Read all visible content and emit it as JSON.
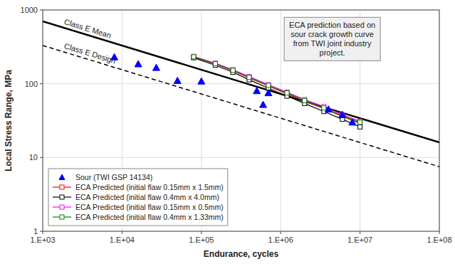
{
  "chart_data": {
    "type": "line",
    "xlabel": "Endurance, cycles",
    "ylabel": "Local Stress Range, MPa",
    "log": true,
    "grid": true,
    "legend": "lower left",
    "xlim": [
      1000,
      100000000
    ],
    "xticks": [
      {
        "value": 1000,
        "label": "1.E+03"
      },
      {
        "value": 10000,
        "label": "1.E+04"
      },
      {
        "value": 100000,
        "label": "1.E+05"
      },
      {
        "value": 1000000,
        "label": "1.E+06"
      },
      {
        "value": 10000000,
        "label": "1.E+07"
      },
      {
        "value": 100000000,
        "label": "1.E+08"
      }
    ],
    "ylim": [
      1,
      1000
    ],
    "yticks": [
      1,
      10,
      100,
      1000
    ],
    "reference_lines": [
      {
        "label": "Class E Mean",
        "x": [
          1000,
          100000000
        ],
        "values": [
          700,
          16
        ],
        "color": "black",
        "line_style": "solid"
      },
      {
        "label": "Class E Design",
        "x": [
          1000,
          100000000
        ],
        "values": [
          330,
          7.5
        ],
        "color": "black",
        "line_style": "dashed"
      }
    ],
    "series": [
      {
        "name": "Sour (TWI GSP 14134)",
        "type": "scatter",
        "color": "blue",
        "marker": "triangle",
        "x": [
          8000,
          16000,
          27000,
          50000,
          100000,
          500000,
          700000,
          600000,
          4000000,
          6000000,
          8000000
        ],
        "values": [
          230,
          185,
          165,
          110,
          108,
          80,
          75,
          52,
          45,
          38,
          30
        ]
      },
      {
        "name": "ECA Predicted (initial flaw 0.15mm x 1.5mm)",
        "type": "line",
        "color": "red",
        "marker": "square",
        "x": [
          80000,
          150000,
          250000,
          400000,
          700000,
          1200000,
          2000000,
          3500000,
          6000000,
          10000000
        ],
        "values": [
          230,
          185,
          150,
          120,
          93,
          73,
          58,
          46,
          36,
          29
        ]
      },
      {
        "name": "ECA Predicted (initial flaw 0.4mm x 4.0mm)",
        "type": "line",
        "color": "black",
        "marker": "square",
        "x": [
          80000,
          150000,
          250000,
          400000,
          700000,
          1200000,
          2000000,
          3500000,
          6000000,
          10000000
        ],
        "values": [
          225,
          178,
          143,
          113,
          87,
          68,
          54,
          42,
          33,
          26
        ]
      },
      {
        "name": "ECA Predicted (initial flaw 0.15mm x 0.5mm)",
        "type": "line",
        "color": "magenta",
        "marker": "square",
        "x": [
          80000,
          150000,
          250000,
          400000,
          700000,
          1200000,
          2000000,
          3500000,
          6000000,
          10000000
        ],
        "values": [
          235,
          190,
          155,
          125,
          97,
          77,
          61,
          49,
          38,
          31
        ]
      },
      {
        "name": "ECA Predicted (initial flaw 0.4mm x 1.33mm)",
        "type": "line",
        "color": "green",
        "marker": "square",
        "x": [
          80000,
          150000,
          250000,
          400000,
          700000,
          1200000,
          2000000,
          3500000,
          6000000,
          10000000
        ],
        "values": [
          232,
          187,
          152,
          122,
          95,
          75,
          59,
          47,
          37,
          30
        ]
      }
    ],
    "annotation": "ECA prediction based on\nsour crack growth curve\nfrom TWI joint industry\nproject."
  }
}
